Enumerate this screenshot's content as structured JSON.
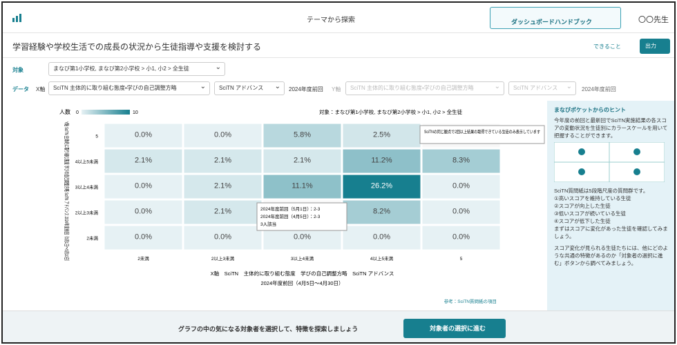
{
  "header": {
    "center": "テーマから探索",
    "banner": "ダッシュボードハンドブック",
    "user": "〇〇先生"
  },
  "titlebar": {
    "title": "学習経験や学校生活での成長の状況から生徒指導や支援を検討する",
    "help": "できること",
    "export": "出力"
  },
  "filters": {
    "target_label": "対象",
    "target": "まなび第1小学校, まなび第2小学校 > 小1, 小2 > 全生徒",
    "data_label": "データ",
    "x_label": "X軸",
    "x_item": "SciTN 主体的に取り組む態度・学びの自己調整方略",
    "x_test": "SciTN アドバンス",
    "x_period": "2024年度前回",
    "y_label": "Y軸",
    "y_item": "SciTN 主体的に取り組む態度・学びの自己調整方略",
    "y_test": "SciTN アドバンス",
    "y_period": "2024年度前回"
  },
  "chart_data": {
    "type": "heatmap",
    "legend": {
      "title": "人数",
      "min": 0,
      "max": 10
    },
    "subtitle": "対象：まなび第1小学校, まなび第2小学校 > 小1, 小2 > 全生徒",
    "x_categories": [
      "2未満",
      "2以上3未満",
      "3以上4未満",
      "4以上5未満",
      "5"
    ],
    "y_categories": [
      "5",
      "4以上5未満",
      "3以上4未満",
      "2以上3未満",
      "2未満"
    ],
    "values": [
      [
        0.0,
        0.0,
        5.8,
        2.5,
        null
      ],
      [
        2.1,
        2.1,
        2.1,
        11.2,
        8.3
      ],
      [
        0.0,
        2.1,
        11.1,
        26.2,
        0.0
      ],
      [
        0.0,
        2.1,
        null,
        8.2,
        0.0
      ],
      [
        0.0,
        0.0,
        0.0,
        0.0,
        0.0
      ]
    ],
    "value_labels": [
      [
        "0.0%",
        "0.0%",
        "5.8%",
        "2.5%",
        null
      ],
      [
        "2.1%",
        "2.1%",
        "2.1%",
        "11.2%",
        "8.3%"
      ],
      [
        "0.0%",
        "2.1%",
        "11.1%",
        "26.2%",
        "0.0%"
      ],
      [
        "0.0%",
        "2.1%",
        null,
        "8.2%",
        "0.0%"
      ],
      [
        "0.0%",
        "0.0%",
        "0.0%",
        "0.0%",
        "0.0%"
      ]
    ],
    "y_title": "Y軸 SciTN 主体的に取り組む態度 学びの自己調整方略 SciTN アドバンス 2024年度前回（5月1日〜5月10日）",
    "x_title": "X軸　SciTN　主体的に取り組む態度　学びの自己調整方略　SciTN アドバンス",
    "x_period": "2024年度前回（4月5日〜4月30日）",
    "link": "参考：SciTN質問紙の項目",
    "tooltip_note": "SciTNの同じ観点で2回以上結果の取得できている生徒のみ表示しています",
    "tooltip_cell": [
      "2024年度前回（5月1日）：2-3",
      "2024年度前回（4月5日）：2-3",
      "3人該当"
    ],
    "color": "#177f8f"
  },
  "hint": {
    "title": "まなびポケットからのヒント",
    "intro": "今年度の前回と最新回でSciTN実施結果の各スコアの変動状況を生徒別にカラースケールを用いて把握することができます。",
    "lines": [
      "SciTN質問紙は5段階尺度の質問群です。",
      "①高いスコアを維持している生徒",
      "②スコアが向上した生徒",
      "③低いスコアが続いている生徒",
      "④スコアが低下した生徒",
      "まずはスコアに変化があった生徒を確認してみましょう。"
    ],
    "outro": "スコア変化が見られる生徒たちには、他にどのような共通の特徴があるのか「対象者の選択に進む」ボタンから調べてみましょう。"
  },
  "footer": {
    "message": "グラフの中の気になる対象者を選択して、特徴を探索しましょう",
    "button": "対象者の選択に進む"
  }
}
